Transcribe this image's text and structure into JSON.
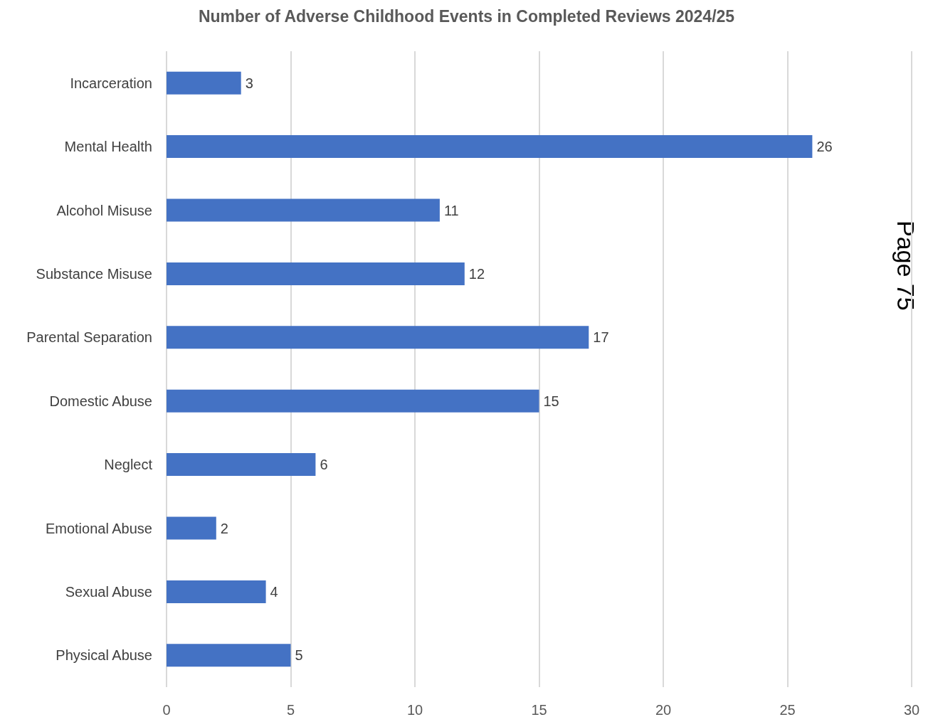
{
  "chart_data": {
    "type": "bar",
    "orientation": "horizontal",
    "title": "Number of Adverse Childhood Events in Completed Reviews 2024/25",
    "categories": [
      "Incarceration",
      "Mental Health",
      "Alcohol Misuse",
      "Substance Misuse",
      "Parental Separation",
      "Domestic Abuse",
      "Neglect",
      "Emotional Abuse",
      "Sexual Abuse",
      "Physical Abuse"
    ],
    "values": [
      3,
      26,
      11,
      12,
      17,
      15,
      6,
      2,
      4,
      5
    ],
    "color": "#4472c4",
    "xlim": [
      0,
      30
    ],
    "xticks": [
      0,
      5,
      10,
      15,
      20,
      25,
      30
    ],
    "grid": "x",
    "data_labels": true,
    "annotations": [
      "Page 75"
    ]
  }
}
